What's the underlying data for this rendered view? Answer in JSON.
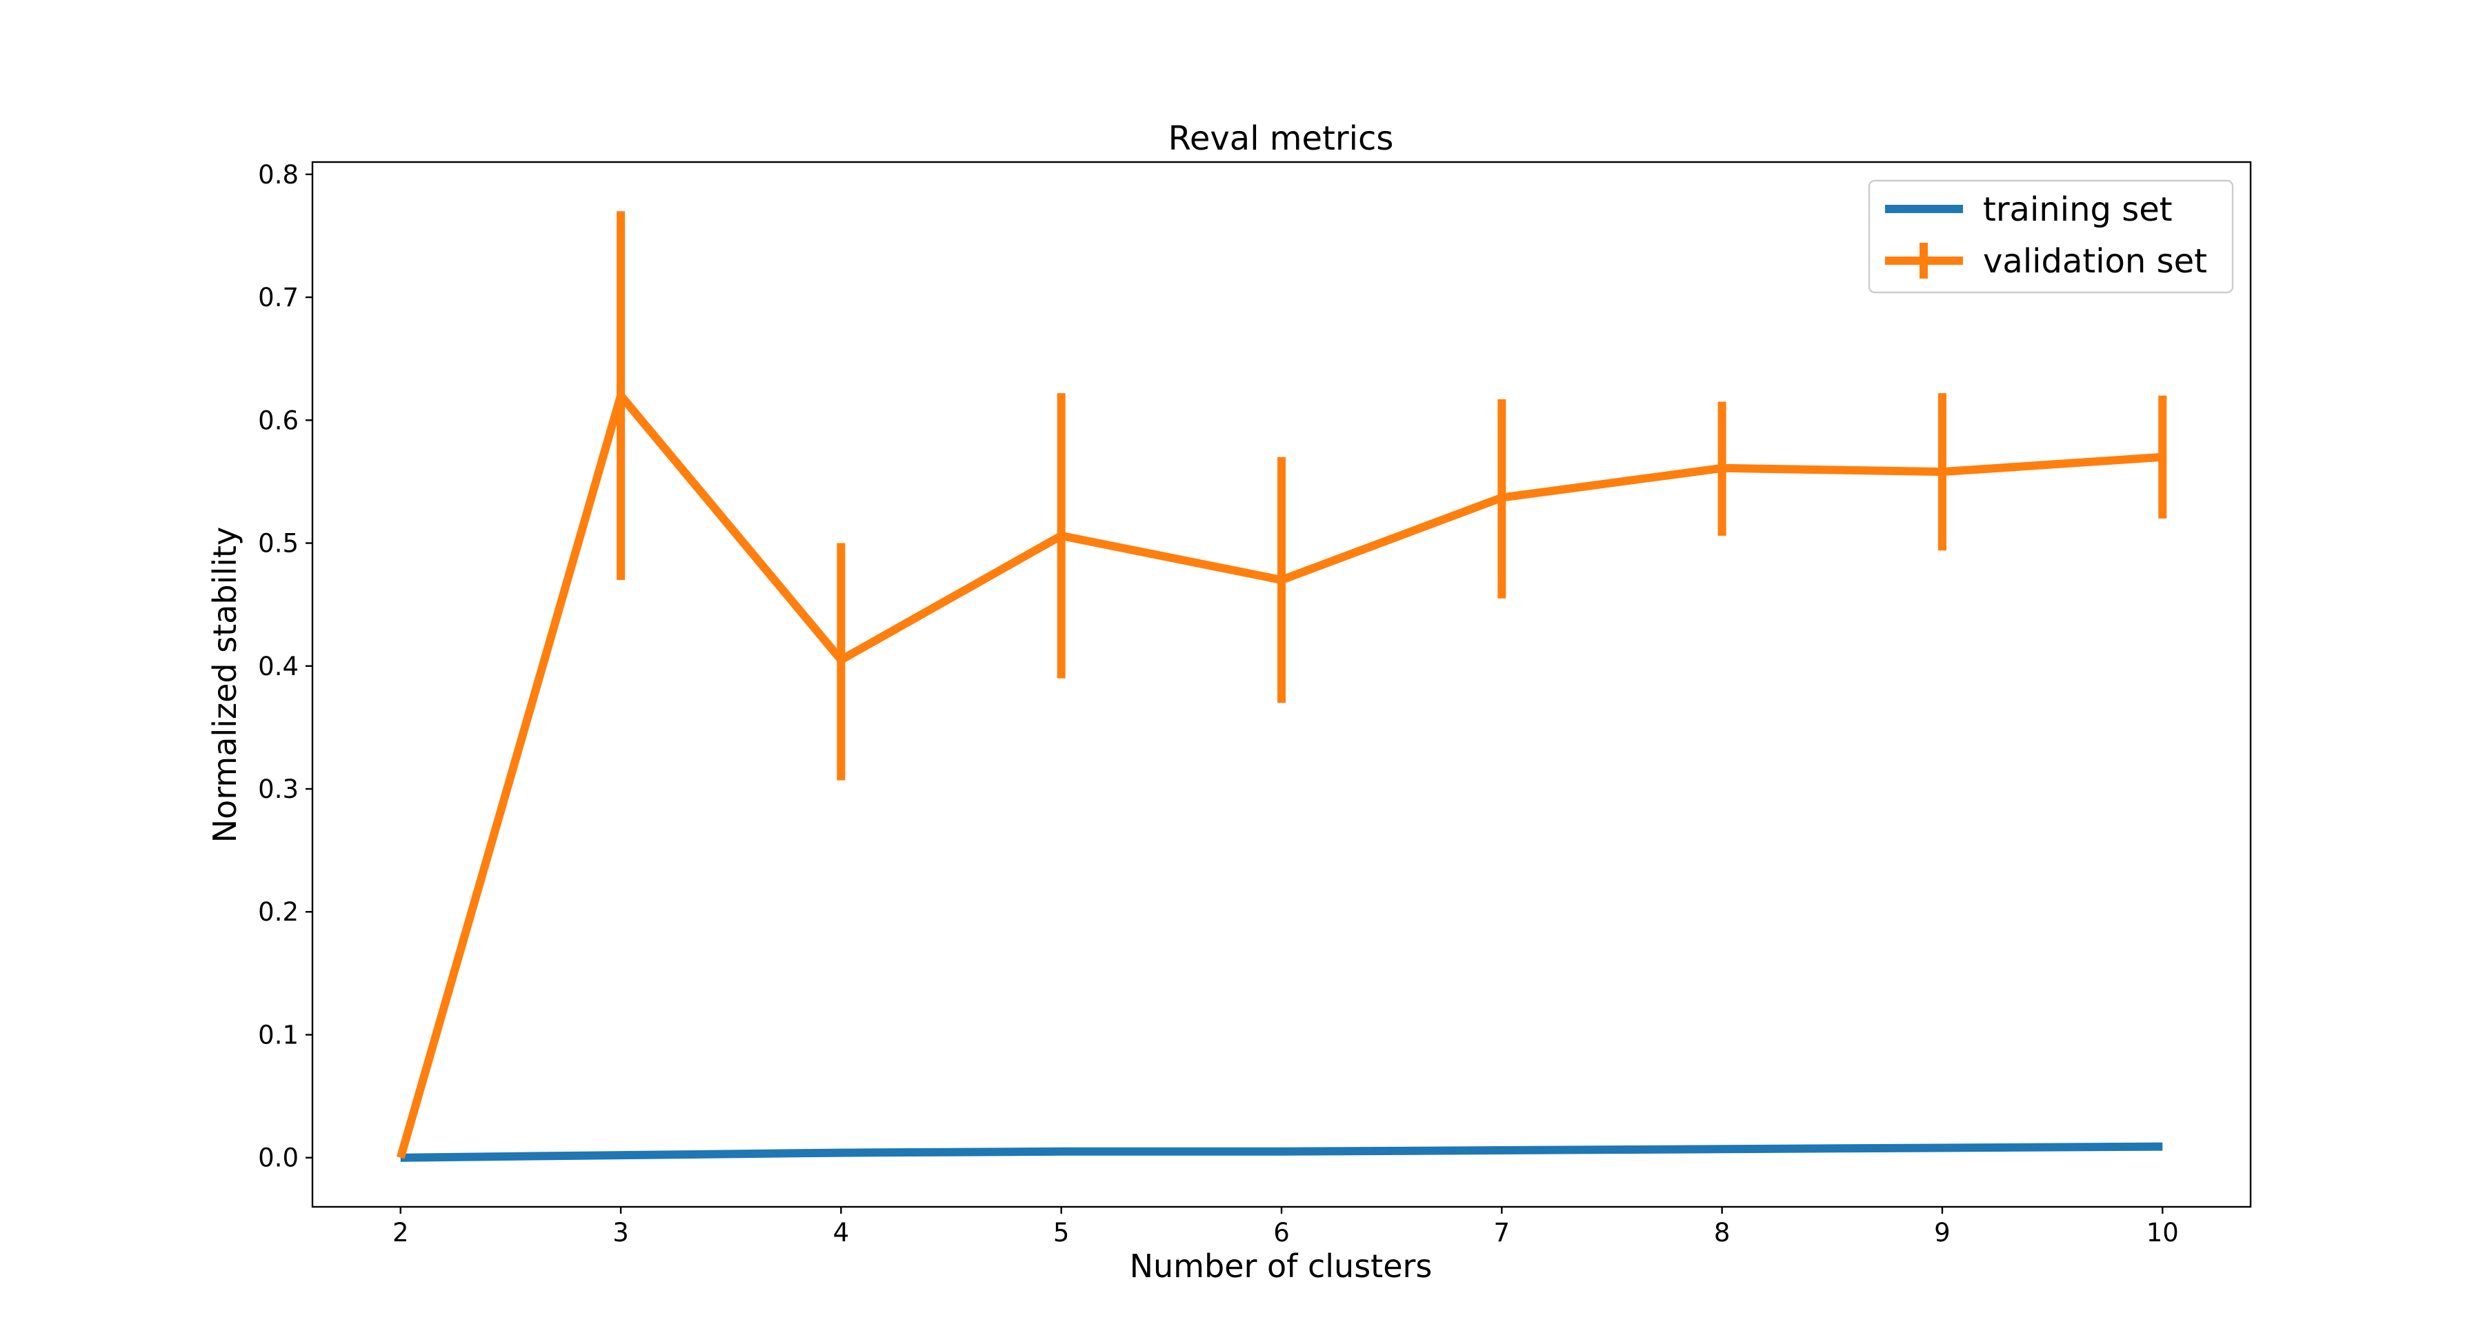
{
  "chart_data": {
    "type": "line",
    "title": "Reval metrics",
    "xlabel": "Number of clusters",
    "ylabel": "Normalized stability",
    "x": [
      2,
      3,
      4,
      5,
      6,
      7,
      8,
      9,
      10
    ],
    "xlim": [
      1.6,
      10.4
    ],
    "ylim": [
      -0.04,
      0.81
    ],
    "x_ticks": [
      2,
      3,
      4,
      5,
      6,
      7,
      8,
      9,
      10
    ],
    "y_ticks": [
      0.0,
      0.1,
      0.2,
      0.3,
      0.4,
      0.5,
      0.6,
      0.7,
      0.8
    ],
    "y_tick_labels": [
      "0.0",
      "0.1",
      "0.2",
      "0.3",
      "0.4",
      "0.5",
      "0.6",
      "0.7",
      "0.8"
    ],
    "grid": false,
    "legend_position": "top-right",
    "series": [
      {
        "name": "training set",
        "color": "#1f77b4",
        "values": [
          0.0,
          0.002,
          0.004,
          0.005,
          0.005,
          0.006,
          0.007,
          0.008,
          0.009
        ]
      },
      {
        "name": "validation set",
        "color": "#ff7f0e",
        "values": [
          0.0,
          0.62,
          0.405,
          0.506,
          0.47,
          0.537,
          0.561,
          0.558,
          0.57
        ],
        "error_low": [
          0.0,
          0.47,
          0.307,
          0.39,
          0.37,
          0.455,
          0.506,
          0.494,
          0.52
        ],
        "error_high": [
          0.0,
          0.77,
          0.5,
          0.622,
          0.57,
          0.617,
          0.615,
          0.622,
          0.62
        ]
      }
    ]
  }
}
